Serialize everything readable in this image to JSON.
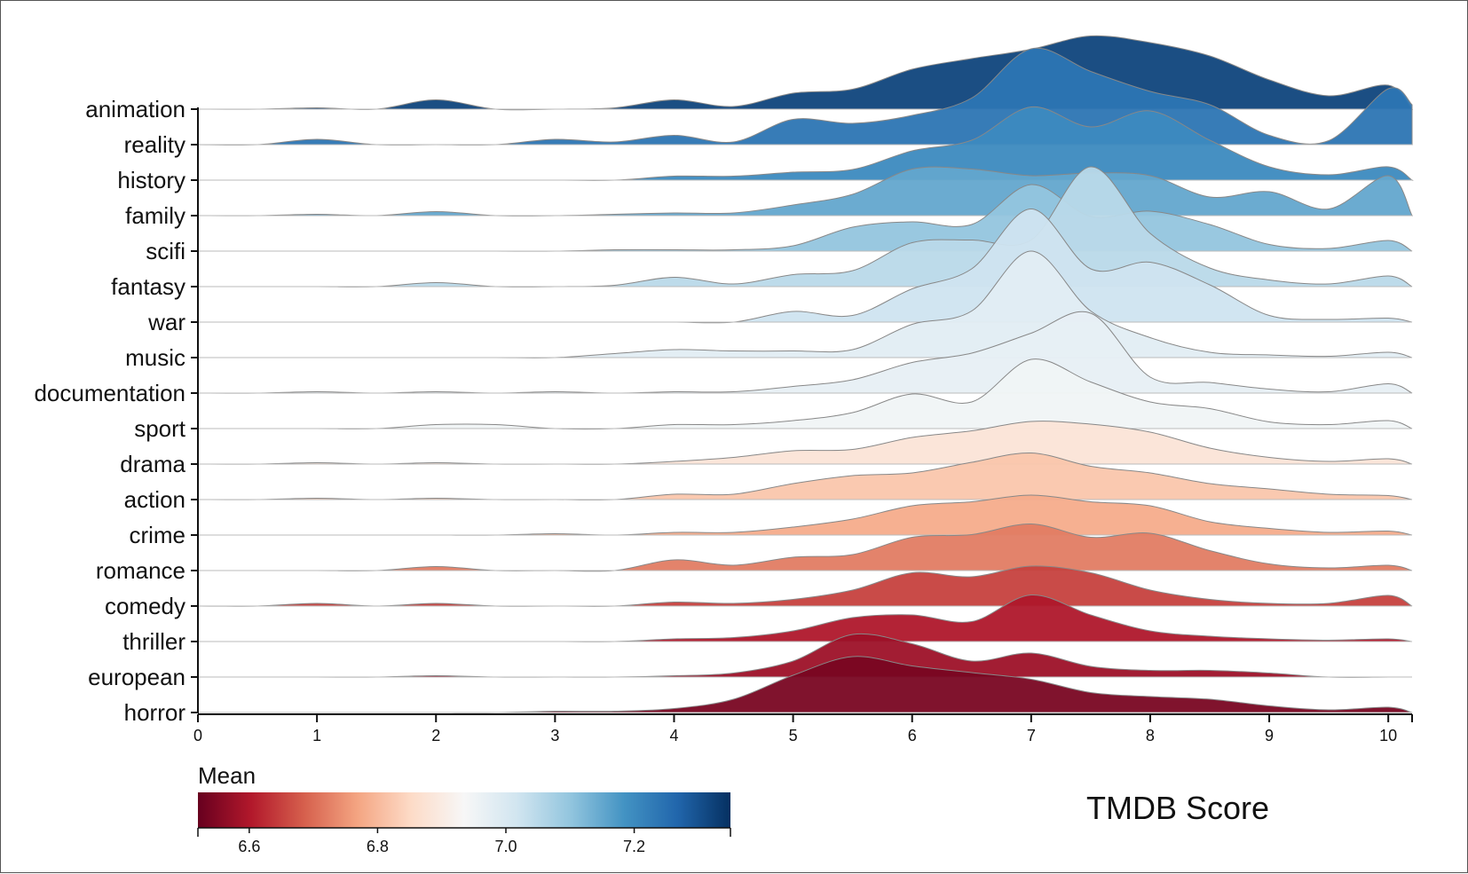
{
  "chart_data": {
    "type": "ridgeline",
    "title": "TMDB Score",
    "xlabel": "",
    "ylabel": "",
    "xlim": [
      0,
      10.2
    ],
    "x_ticks": [
      0,
      1,
      2,
      3,
      4,
      5,
      6,
      7,
      8,
      9,
      10
    ],
    "x_tick_labels": [
      "0",
      "1",
      "2",
      "3",
      "4",
      "5",
      "6",
      "7",
      "8",
      "9",
      "10"
    ],
    "legend": {
      "title": "Mean",
      "domain": [
        6.52,
        7.35
      ],
      "ticks": [
        6.6,
        6.8,
        7.0,
        7.2
      ],
      "tick_labels": [
        "6.6",
        "6.8",
        "7.0",
        "7.2"
      ],
      "colorscale": "RdBu",
      "stops": [
        "#67001f",
        "#b2182b",
        "#d6604d",
        "#f4a582",
        "#fddbc7",
        "#f7f7f7",
        "#d1e5f0",
        "#92c5de",
        "#4393c3",
        "#2166ac",
        "#053061"
      ],
      "placement": "bottom-left"
    },
    "x": [
      0,
      0.5,
      1,
      1.5,
      2,
      2.5,
      3,
      3.5,
      4,
      4.5,
      5,
      5.5,
      6,
      6.5,
      7,
      7.5,
      8,
      8.5,
      9,
      9.5,
      10,
      10.2
    ],
    "series": [
      {
        "name": "animation",
        "mean": 7.32,
        "density": [
          0,
          0,
          0.01,
          0,
          0.07,
          0,
          0,
          0.01,
          0.07,
          0.02,
          0.12,
          0.15,
          0.3,
          0.38,
          0.45,
          0.55,
          0.5,
          0.4,
          0.22,
          0.1,
          0.18,
          0
        ]
      },
      {
        "name": "reality",
        "mean": 7.24,
        "density": [
          0,
          0,
          0.04,
          0,
          0,
          0,
          0.04,
          0.02,
          0.07,
          0.02,
          0.19,
          0.16,
          0.22,
          0.35,
          0.72,
          0.55,
          0.4,
          0.3,
          0.07,
          0.03,
          0.42,
          0.3
        ]
      },
      {
        "name": "history",
        "mean": 7.2,
        "density": [
          0,
          0,
          0,
          0,
          0,
          0,
          0,
          0,
          0.03,
          0.03,
          0.06,
          0.08,
          0.22,
          0.3,
          0.55,
          0.4,
          0.52,
          0.3,
          0.1,
          0.04,
          0.1,
          0
        ]
      },
      {
        "name": "family",
        "mean": 7.15,
        "density": [
          0,
          0,
          0.01,
          0,
          0.03,
          0,
          0,
          0.01,
          0.02,
          0.02,
          0.08,
          0.16,
          0.35,
          0.35,
          0.3,
          0.32,
          0.3,
          0.14,
          0.18,
          0.05,
          0.3,
          0
        ]
      },
      {
        "name": "scifi",
        "mean": 7.1,
        "density": [
          0,
          0,
          0,
          0,
          0,
          0,
          0,
          0.01,
          0.01,
          0.01,
          0.04,
          0.18,
          0.22,
          0.2,
          0.5,
          0.26,
          0.3,
          0.2,
          0.05,
          0.02,
          0.08,
          0
        ]
      },
      {
        "name": "fantasy",
        "mean": 7.05,
        "density": [
          0,
          0,
          0,
          0,
          0.03,
          0,
          0,
          0.01,
          0.07,
          0.02,
          0.09,
          0.12,
          0.33,
          0.35,
          0.35,
          0.9,
          0.4,
          0.14,
          0.05,
          0.02,
          0.08,
          0
        ]
      },
      {
        "name": "war",
        "mean": 7.02,
        "density": [
          0,
          0,
          0,
          0,
          0,
          0,
          0,
          0,
          0,
          0,
          0.08,
          0.05,
          0.25,
          0.4,
          0.85,
          0.4,
          0.45,
          0.28,
          0.05,
          0.02,
          0.03,
          0
        ]
      },
      {
        "name": "music",
        "mean": 6.98,
        "density": [
          0,
          0,
          0,
          0,
          0,
          0,
          0,
          0.03,
          0.06,
          0.05,
          0.05,
          0.06,
          0.25,
          0.35,
          0.8,
          0.35,
          0.15,
          0.04,
          0.02,
          0.01,
          0.04,
          0
        ]
      },
      {
        "name": "documentation",
        "mean": 6.97,
        "density": [
          0,
          0,
          0.01,
          0,
          0.01,
          0,
          0.01,
          0,
          0.01,
          0.01,
          0.05,
          0.1,
          0.23,
          0.3,
          0.45,
          0.6,
          0.12,
          0.08,
          0.03,
          0.01,
          0.07,
          0
        ]
      },
      {
        "name": "sport",
        "mean": 6.95,
        "density": [
          0,
          0,
          0,
          0,
          0.03,
          0.03,
          0,
          0,
          0.03,
          0.03,
          0.06,
          0.12,
          0.26,
          0.2,
          0.52,
          0.35,
          0.2,
          0.15,
          0.05,
          0.03,
          0.06,
          0
        ]
      },
      {
        "name": "drama",
        "mean": 6.88,
        "density": [
          0,
          0,
          0.01,
          0,
          0.01,
          0,
          0,
          0,
          0.02,
          0.05,
          0.1,
          0.11,
          0.2,
          0.25,
          0.32,
          0.3,
          0.24,
          0.12,
          0.05,
          0.02,
          0.04,
          0
        ]
      },
      {
        "name": "action",
        "mean": 6.82,
        "density": [
          0,
          0,
          0.01,
          0,
          0.01,
          0,
          0,
          0,
          0.04,
          0.04,
          0.12,
          0.18,
          0.2,
          0.28,
          0.35,
          0.25,
          0.2,
          0.12,
          0.08,
          0.04,
          0.03,
          0
        ]
      },
      {
        "name": "crime",
        "mean": 6.78,
        "density": [
          0,
          0,
          0,
          0,
          0,
          0,
          0.01,
          0,
          0.02,
          0.02,
          0.06,
          0.12,
          0.22,
          0.25,
          0.3,
          0.25,
          0.22,
          0.1,
          0.05,
          0.02,
          0.03,
          0
        ]
      },
      {
        "name": "romance",
        "mean": 6.72,
        "density": [
          0,
          0,
          0,
          0,
          0.03,
          0,
          0,
          0,
          0.08,
          0.04,
          0.1,
          0.12,
          0.25,
          0.27,
          0.35,
          0.25,
          0.28,
          0.15,
          0.05,
          0.02,
          0.04,
          0
        ]
      },
      {
        "name": "comedy",
        "mean": 6.65,
        "density": [
          0,
          0,
          0.02,
          0,
          0.02,
          0,
          0,
          0,
          0.03,
          0.02,
          0.05,
          0.12,
          0.25,
          0.22,
          0.3,
          0.25,
          0.12,
          0.05,
          0.02,
          0.02,
          0.08,
          0
        ]
      },
      {
        "name": "thriller",
        "mean": 6.6,
        "density": [
          0,
          0,
          0,
          0,
          0,
          0,
          0,
          0,
          0.02,
          0.03,
          0.08,
          0.18,
          0.2,
          0.15,
          0.35,
          0.2,
          0.08,
          0.04,
          0.02,
          0.01,
          0.02,
          0
        ]
      },
      {
        "name": "european",
        "mean": 6.58,
        "density": [
          0,
          0,
          0,
          0,
          0.01,
          0,
          0,
          0,
          0.01,
          0.03,
          0.12,
          0.32,
          0.25,
          0.12,
          0.18,
          0.08,
          0.05,
          0.05,
          0.03,
          0,
          0,
          0
        ]
      },
      {
        "name": "horror",
        "mean": 6.54,
        "density": [
          0,
          0,
          0,
          0,
          0,
          0,
          0.01,
          0.01,
          0.03,
          0.1,
          0.28,
          0.42,
          0.35,
          0.3,
          0.25,
          0.15,
          0.12,
          0.1,
          0.05,
          0.02,
          0.04,
          0
        ]
      }
    ]
  }
}
